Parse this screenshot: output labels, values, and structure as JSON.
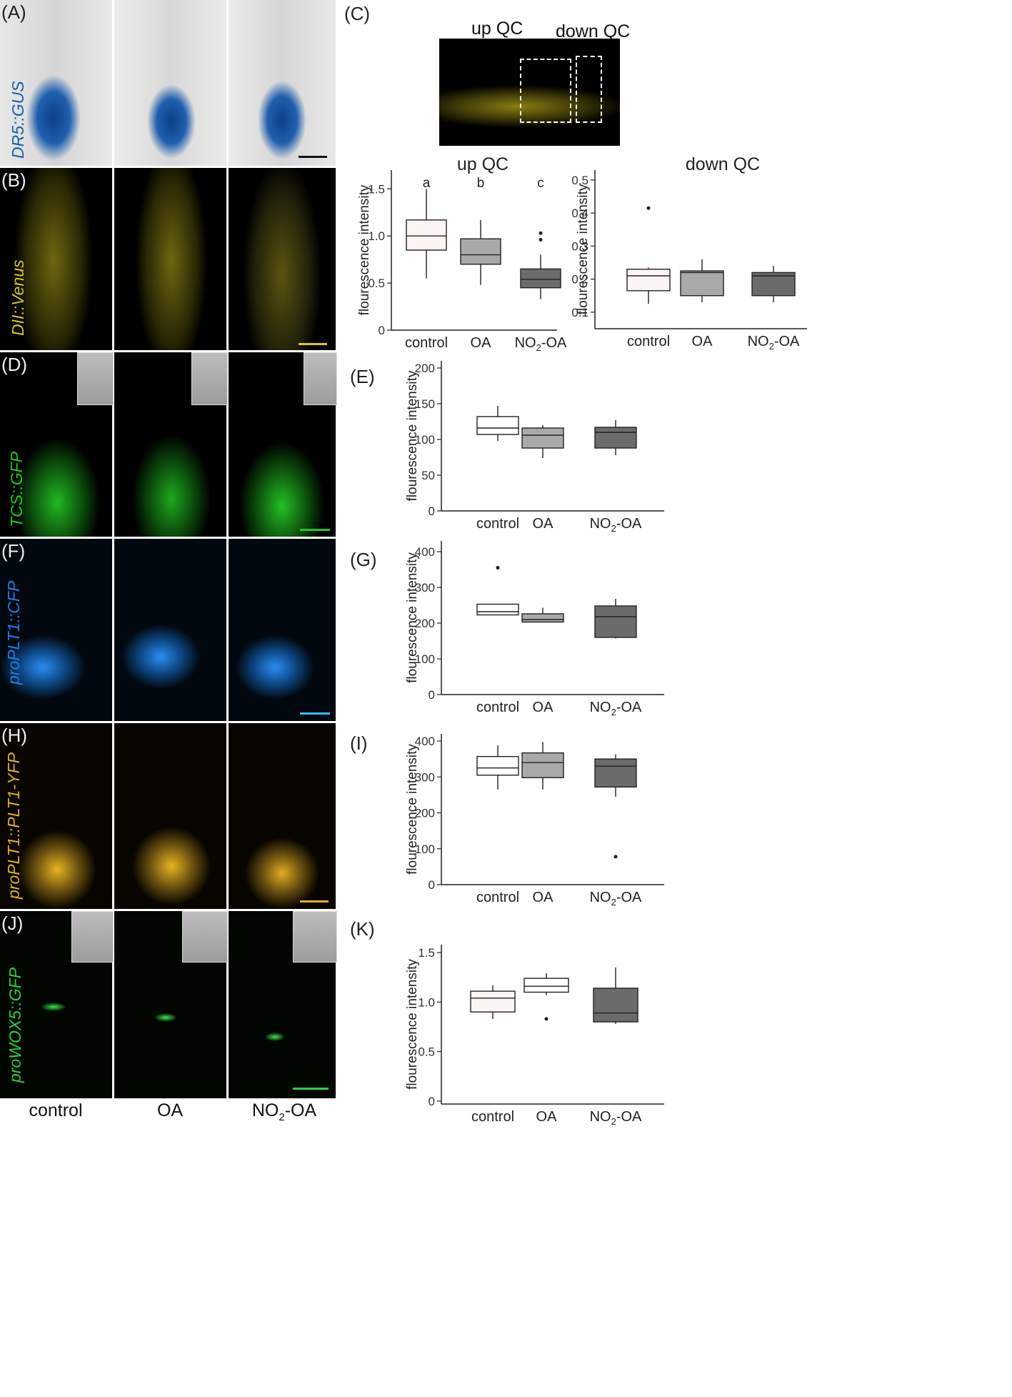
{
  "panel_labels": {
    "A": "(A)",
    "B": "(B)",
    "C": "(C)",
    "D": "(D)",
    "E": "(E)",
    "F": "(F)",
    "G": "(G)",
    "H": "(H)",
    "I": "(I)",
    "J": "(J)",
    "K": "(K)"
  },
  "row_labels": {
    "A": "DR5::GUS",
    "B": "DII::Venus",
    "D": "TCS::GFP",
    "F": "proPLT1::CFP",
    "H": "proPLT1::PLT1-YFP",
    "J": "proWOX5::GFP"
  },
  "bottom_labels": {
    "control": "control",
    "oa": "OA",
    "no2oa_base": "NO",
    "no2oa_sub": "2",
    "no2oa_tail": "-OA"
  },
  "qc_labels": {
    "up": "up  QC",
    "down": "down QC"
  },
  "colors": {
    "gus": "#1a5ea8",
    "venus": "#d8c81e",
    "tcs": "#22c722",
    "cfp": "#1f7fe0",
    "yfp": "#e0b020",
    "wox": "#2bd13a",
    "box_light": "#fcf5f3",
    "box_mid": "#a9a9a9",
    "box_dark": "#6b6b6b",
    "box_white": "#ffffff"
  },
  "chart_data": [
    {
      "id": "C-up",
      "type": "box",
      "title": "up  QC",
      "xlabel": "",
      "ylabel": "flourescence intensity",
      "categories": [
        "control",
        "OA",
        "NO2-OA"
      ],
      "ylim": [
        0,
        1.7
      ],
      "yticks": [
        0,
        0.5,
        1.0,
        1.5
      ],
      "letters": [
        "a",
        "b",
        "c"
      ],
      "boxes": [
        {
          "min": 0.55,
          "q1": 0.85,
          "median": 1.0,
          "q3": 1.17,
          "max": 1.5,
          "outliers": []
        },
        {
          "min": 0.48,
          "q1": 0.7,
          "median": 0.8,
          "q3": 0.97,
          "max": 1.17,
          "outliers": []
        },
        {
          "min": 0.33,
          "q1": 0.45,
          "median": 0.54,
          "q3": 0.65,
          "max": 0.8,
          "outliers": [
            0.96,
            1.03
          ]
        }
      ]
    },
    {
      "id": "C-down",
      "type": "box",
      "title": "down QC",
      "xlabel": "",
      "ylabel": "flourescence intensity",
      "categories": [
        "control",
        "OA",
        "NO2-OA"
      ],
      "ylim": [
        0.05,
        0.53
      ],
      "yticks": [
        0.1,
        0.2,
        0.3,
        0.4,
        0.5
      ],
      "letters": [],
      "boxes": [
        {
          "min": 0.125,
          "q1": 0.165,
          "median": 0.21,
          "q3": 0.23,
          "max": 0.235,
          "outliers": [
            0.415
          ]
        },
        {
          "min": 0.13,
          "q1": 0.15,
          "median": 0.22,
          "q3": 0.225,
          "max": 0.26,
          "outliers": []
        },
        {
          "min": 0.13,
          "q1": 0.15,
          "median": 0.21,
          "q3": 0.22,
          "max": 0.24,
          "outliers": []
        }
      ]
    },
    {
      "id": "E",
      "type": "box",
      "title": "",
      "xlabel": "",
      "ylabel": "flourescence intensity",
      "categories": [
        "control",
        "OA",
        "NO2-OA"
      ],
      "ylim": [
        0,
        210
      ],
      "yticks": [
        0,
        50,
        100,
        150,
        200
      ],
      "letters": [],
      "boxes": [
        {
          "min": 98,
          "q1": 107,
          "median": 116,
          "q3": 132,
          "max": 147,
          "outliers": []
        },
        {
          "min": 74,
          "q1": 88,
          "median": 106,
          "q3": 116,
          "max": 120,
          "outliers": []
        },
        {
          "min": 78,
          "q1": 88,
          "median": 110,
          "q3": 117,
          "max": 127,
          "outliers": []
        }
      ]
    },
    {
      "id": "G",
      "type": "box",
      "title": "",
      "xlabel": "",
      "ylabel": "flourescence intensity",
      "categories": [
        "control",
        "OA",
        "NO2-OA"
      ],
      "ylim": [
        0,
        430
      ],
      "yticks": [
        0,
        100,
        200,
        300,
        400
      ],
      "letters": [],
      "boxes": [
        {
          "min": 223,
          "q1": 223,
          "median": 232,
          "q3": 253,
          "max": 253,
          "outliers": [
            355
          ]
        },
        {
          "min": 203,
          "q1": 203,
          "median": 210,
          "q3": 226,
          "max": 243,
          "outliers": []
        },
        {
          "min": 157,
          "q1": 160,
          "median": 218,
          "q3": 248,
          "max": 268,
          "outliers": []
        }
      ]
    },
    {
      "id": "I",
      "type": "box",
      "title": "",
      "xlabel": "",
      "ylabel": "flourescence intensity",
      "categories": [
        "control",
        "OA",
        "NO2-OA"
      ],
      "ylim": [
        0,
        420
      ],
      "yticks": [
        0,
        100,
        200,
        300,
        400
      ],
      "letters": [],
      "boxes": [
        {
          "min": 265,
          "q1": 305,
          "median": 325,
          "q3": 357,
          "max": 388,
          "outliers": []
        },
        {
          "min": 265,
          "q1": 298,
          "median": 340,
          "q3": 367,
          "max": 397,
          "outliers": []
        },
        {
          "min": 245,
          "q1": 272,
          "median": 330,
          "q3": 350,
          "max": 363,
          "outliers": [
            78
          ]
        }
      ]
    },
    {
      "id": "K",
      "type": "box",
      "title": "",
      "xlabel": "",
      "ylabel": "flourescence intensity",
      "categories": [
        "control",
        "OA",
        "NO2-OA"
      ],
      "ylim": [
        -0.03,
        1.58
      ],
      "yticks": [
        0,
        0.5,
        1.0,
        1.5
      ],
      "letters": [],
      "boxes": [
        {
          "min": 0.83,
          "q1": 0.9,
          "median": 1.04,
          "q3": 1.11,
          "max": 1.17,
          "outliers": []
        },
        {
          "min": 1.07,
          "q1": 1.1,
          "median": 1.16,
          "q3": 1.24,
          "max": 1.29,
          "outliers": [
            0.83
          ]
        },
        {
          "min": 0.78,
          "q1": 0.8,
          "median": 0.89,
          "q3": 1.14,
          "max": 1.35,
          "outliers": []
        }
      ]
    }
  ]
}
